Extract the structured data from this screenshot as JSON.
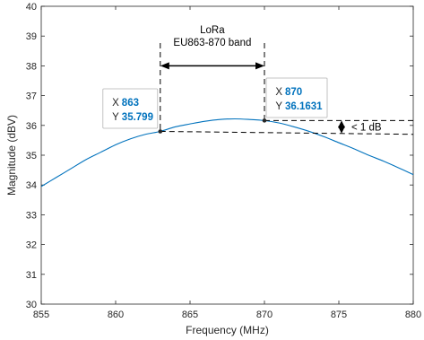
{
  "chart_data": {
    "type": "line",
    "title": "",
    "xlabel": "Frequency (MHz)",
    "ylabel": "Magnitude (dBV)",
    "xlim": [
      855,
      880
    ],
    "ylim": [
      30,
      40
    ],
    "xticks": [
      855,
      860,
      865,
      870,
      875,
      880
    ],
    "yticks": [
      30,
      31,
      32,
      33,
      34,
      35,
      36,
      37,
      38,
      39,
      40
    ],
    "grid": false,
    "series_color": "#0072BD",
    "series": [
      {
        "x": [
          855,
          856,
          857,
          858,
          859,
          860,
          861,
          862,
          863,
          864,
          865,
          866,
          867,
          868,
          869,
          870,
          871,
          872,
          873,
          874,
          875,
          876,
          877,
          878,
          879,
          880
        ],
        "y": [
          33.95,
          34.25,
          34.55,
          34.85,
          35.1,
          35.35,
          35.55,
          35.7,
          35.799,
          35.95,
          36.05,
          36.14,
          36.2,
          36.22,
          36.2,
          36.1631,
          36.08,
          35.95,
          35.8,
          35.62,
          35.42,
          35.22,
          35.0,
          34.8,
          34.58,
          34.35
        ]
      }
    ],
    "annotations": {
      "band_line1": "LoRa",
      "band_line2": "EU863-870 band",
      "delta_label": "< 1 dB",
      "datatip_value_color": "#0072BD",
      "datatips": [
        {
          "x_label": "X",
          "x_value": "863",
          "y_label": "Y",
          "y_value": "35.799",
          "x": 863,
          "y": 35.799
        },
        {
          "x_label": "X",
          "x_value": "870",
          "y_label": "Y",
          "y_value": "36.1631",
          "x": 870,
          "y": 36.1631
        }
      ]
    }
  }
}
